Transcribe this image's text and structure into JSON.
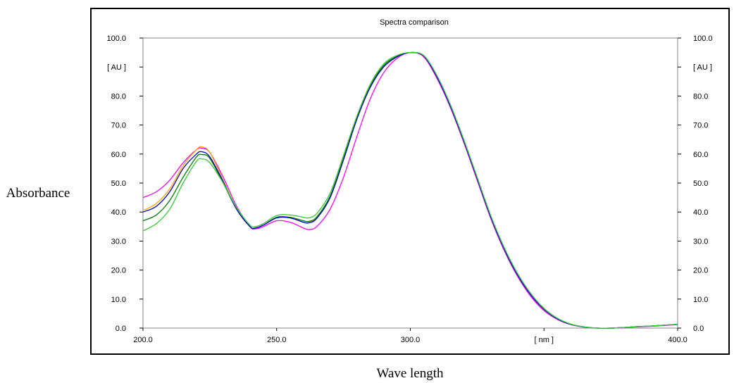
{
  "chart_data": {
    "type": "line",
    "title": "Spectra comparison",
    "xlabel": "Wave length",
    "ylabel": "Absorbance",
    "x_unit_label": "[ nm ]",
    "y_unit_label": "[ AU ]",
    "xlim": [
      200,
      400
    ],
    "ylim": [
      0,
      100
    ],
    "x_ticks": [
      "200.0",
      "250.0",
      "300.0",
      "[ nm ]",
      "400.0"
    ],
    "y_ticks": [
      "0.0",
      "10.0",
      "20.0",
      "30.0",
      "40.0",
      "50.0",
      "60.0",
      "70.0",
      "80.0",
      "[ AU ]",
      "100.0"
    ],
    "grid": false,
    "series": [
      {
        "color": "#ff00ff",
        "x": [
          200,
          205,
          210,
          215,
          220,
          222,
          225,
          230,
          235,
          240,
          242,
          245,
          250,
          255,
          260,
          262,
          265,
          270,
          275,
          280,
          285,
          290,
          295,
          300,
          305,
          310,
          315,
          320,
          325,
          330,
          335,
          340,
          345,
          350,
          355,
          360,
          365,
          370,
          375,
          380,
          385,
          390,
          395,
          400
        ],
        "y": [
          45,
          47,
          51,
          57,
          61.5,
          62,
          60.5,
          52,
          42,
          35,
          34.2,
          35,
          37,
          36.5,
          34.5,
          34,
          35,
          41,
          52,
          66,
          79,
          88,
          93,
          95,
          93.5,
          86,
          76,
          64,
          51,
          38,
          27,
          18,
          11,
          6,
          3,
          1.2,
          0.3,
          0,
          0,
          0.2,
          0.4,
          0.6,
          0.9,
          1.2
        ]
      },
      {
        "color": "#ffa500",
        "x": [
          200,
          205,
          210,
          215,
          220,
          222,
          225,
          230,
          235,
          240,
          242,
          245,
          250,
          255,
          260,
          262,
          265,
          270,
          275,
          280,
          285,
          290,
          295,
          300,
          305,
          310,
          315,
          320,
          325,
          330,
          335,
          340,
          345,
          350,
          355,
          360,
          365,
          370,
          375,
          380,
          385,
          390,
          395,
          400
        ],
        "y": [
          40.5,
          43,
          48,
          56,
          61.5,
          62.5,
          60.5,
          51,
          41,
          35,
          34.5,
          35.5,
          38,
          38,
          36.5,
          36.5,
          38,
          45,
          58,
          72,
          83,
          90,
          93.5,
          95,
          93.8,
          86.5,
          76.5,
          64.5,
          51.5,
          38.5,
          27.5,
          18.5,
          11.5,
          6.5,
          3.2,
          1.3,
          0.4,
          0,
          0,
          0.2,
          0.5,
          0.7,
          1,
          1.3
        ]
      },
      {
        "color": "#008000",
        "x": [
          200,
          205,
          210,
          215,
          220,
          222,
          225,
          230,
          235,
          240,
          242,
          245,
          250,
          255,
          260,
          262,
          265,
          270,
          275,
          280,
          285,
          290,
          295,
          300,
          305,
          310,
          315,
          320,
          325,
          330,
          335,
          340,
          345,
          350,
          355,
          360,
          365,
          370,
          375,
          380,
          385,
          390,
          395,
          400
        ],
        "y": [
          37,
          39,
          44,
          52,
          59,
          59.8,
          58.5,
          50,
          41,
          35,
          34.5,
          35.5,
          38.2,
          38.2,
          37,
          36.8,
          38.3,
          45.5,
          58.5,
          72.5,
          83.5,
          90.5,
          93.7,
          95,
          93.8,
          86.5,
          76.5,
          64.5,
          51.5,
          38.5,
          27.5,
          18.5,
          11.5,
          6.5,
          3.2,
          1.3,
          0.4,
          0,
          0,
          0.2,
          0.5,
          0.7,
          1,
          1.3
        ]
      },
      {
        "color": "#0000cd",
        "x": [
          200,
          205,
          210,
          215,
          220,
          222,
          225,
          230,
          235,
          240,
          242,
          245,
          250,
          255,
          260,
          262,
          265,
          270,
          275,
          280,
          285,
          290,
          295,
          300,
          305,
          310,
          315,
          320,
          325,
          330,
          335,
          340,
          345,
          350,
          355,
          360,
          365,
          370,
          375,
          380,
          385,
          390,
          395,
          400
        ],
        "y": [
          40,
          42,
          47,
          55,
          60,
          60.8,
          59,
          50.5,
          41,
          35,
          34.5,
          35.5,
          38,
          38,
          36.5,
          36.3,
          37.8,
          45,
          58,
          72,
          83,
          90,
          93.5,
          95,
          93.8,
          86.5,
          76.5,
          64.5,
          51.5,
          38.5,
          27.5,
          18.5,
          11.5,
          6.5,
          3.2,
          1.3,
          0.4,
          0,
          0,
          0.2,
          0.5,
          0.7,
          1,
          1.3
        ]
      },
      {
        "color": "#32cd32",
        "x": [
          200,
          205,
          210,
          215,
          220,
          222,
          225,
          230,
          235,
          240,
          242,
          245,
          250,
          255,
          260,
          262,
          265,
          270,
          275,
          280,
          285,
          290,
          295,
          300,
          305,
          310,
          315,
          320,
          325,
          330,
          335,
          340,
          345,
          350,
          355,
          360,
          365,
          370,
          375,
          380,
          385,
          390,
          395,
          400
        ],
        "y": [
          33.5,
          36,
          41,
          50,
          57.5,
          58.3,
          57,
          50,
          41.5,
          35.5,
          35,
          36,
          38.8,
          39,
          38.2,
          38,
          39.5,
          46.5,
          59.5,
          73,
          84,
          91,
          94,
          95,
          94,
          87,
          77,
          65,
          52,
          39,
          28,
          19,
          12,
          6.8,
          3.4,
          1.4,
          0.4,
          0,
          0,
          0.2,
          0.5,
          0.7,
          1,
          1.3
        ]
      }
    ]
  }
}
